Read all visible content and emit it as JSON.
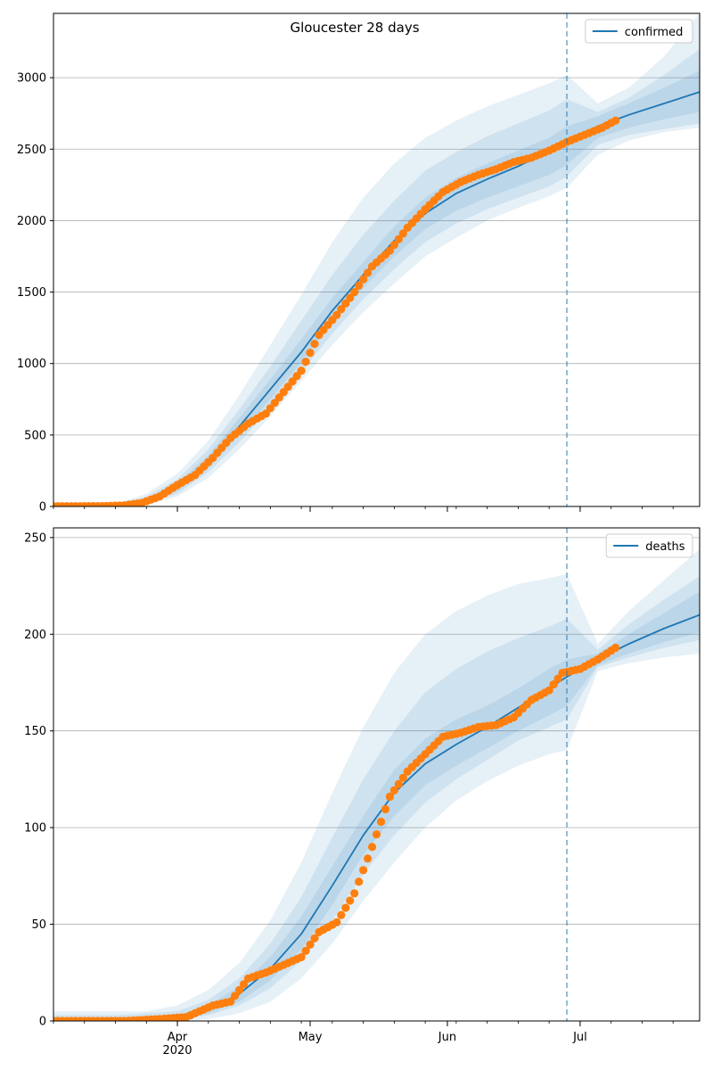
{
  "figure": {
    "title": "Gloucester 28 days"
  },
  "colors": {
    "model": "#1f77b4",
    "observed": "#ff7f0e",
    "band": "#1f77b4",
    "grid": "#b0b0b0"
  },
  "x_axis": {
    "start": "2020-03-04",
    "end": "2020-07-28",
    "month_ticks": [
      {
        "date": "2020-04-01",
        "label": "Apr",
        "sublabel": "2020"
      },
      {
        "date": "2020-05-01",
        "label": "May",
        "sublabel": ""
      },
      {
        "date": "2020-06-01",
        "label": "Jun",
        "sublabel": ""
      },
      {
        "date": "2020-07-01",
        "label": "Jul",
        "sublabel": ""
      }
    ],
    "forecast_date": "2020-06-28"
  },
  "chart_data": [
    {
      "type": "line",
      "legend": "confirmed",
      "legend_position": "top-right",
      "grid": "horizontal",
      "ylim": [
        0,
        3450
      ],
      "yticks": [
        0,
        500,
        1000,
        1500,
        2000,
        2500,
        3000
      ],
      "model": {
        "x": [
          "2020-03-04",
          "2020-03-18",
          "2020-03-25",
          "2020-04-01",
          "2020-04-08",
          "2020-04-15",
          "2020-04-22",
          "2020-04-29",
          "2020-05-06",
          "2020-05-13",
          "2020-05-20",
          "2020-05-27",
          "2020-06-03",
          "2020-06-10",
          "2020-06-17",
          "2020-06-24",
          "2020-06-28",
          "2020-07-05",
          "2020-07-12",
          "2020-07-20",
          "2020-07-28"
        ],
        "y": [
          0,
          5,
          40,
          130,
          310,
          560,
          820,
          1080,
          1370,
          1620,
          1860,
          2050,
          2190,
          2290,
          2380,
          2490,
          2560,
          2660,
          2740,
          2820,
          2900
        ],
        "bands": [
          {
            "lower": [
              0,
              0,
              10,
              70,
              200,
              400,
              630,
              880,
              1130,
              1360,
              1560,
              1750,
              1880,
              2000,
              2090,
              2170,
              2230,
              2460,
              2560,
              2620,
              2650
            ],
            "upper": [
              0,
              15,
              90,
              230,
              460,
              780,
              1130,
              1480,
              1850,
              2160,
              2400,
              2580,
              2700,
              2800,
              2880,
              2960,
              3020,
              2820,
              2930,
              3150,
              3450
            ]
          },
          {
            "lower": [
              0,
              2,
              20,
              90,
              240,
              450,
              690,
              940,
              1210,
              1450,
              1660,
              1850,
              1980,
              2080,
              2160,
              2240,
              2310,
              2530,
              2600,
              2640,
              2680
            ],
            "upper": [
              0,
              10,
              70,
              190,
              400,
              680,
              980,
              1300,
              1620,
              1900,
              2140,
              2350,
              2480,
              2590,
              2680,
              2770,
              2850,
              2760,
              2860,
              3020,
              3200
            ]
          },
          {
            "lower": [
              0,
              3,
              28,
              108,
              270,
              500,
              750,
              1010,
              1290,
              1530,
              1750,
              1940,
              2070,
              2160,
              2240,
              2320,
              2390,
              2580,
              2650,
              2710,
              2760
            ],
            "upper": [
              0,
              8,
              55,
              160,
              360,
              620,
              890,
              1170,
              1460,
              1710,
              1960,
              2160,
              2300,
              2400,
              2490,
              2580,
              2660,
              2730,
              2820,
              2930,
              3050
            ]
          }
        ]
      },
      "observed": {
        "x": [
          "2020-03-04",
          "2020-03-10",
          "2020-03-16",
          "2020-03-20",
          "2020-03-24",
          "2020-03-28",
          "2020-04-01",
          "2020-04-05",
          "2020-04-09",
          "2020-04-13",
          "2020-04-17",
          "2020-04-21",
          "2020-04-25",
          "2020-04-29",
          "2020-05-03",
          "2020-05-07",
          "2020-05-11",
          "2020-05-15",
          "2020-05-19",
          "2020-05-23",
          "2020-05-27",
          "2020-05-31",
          "2020-06-04",
          "2020-06-08",
          "2020-06-12",
          "2020-06-16",
          "2020-06-20",
          "2020-06-24",
          "2020-06-28",
          "2020-07-02",
          "2020-07-06",
          "2020-07-09"
        ],
        "y": [
          2,
          2,
          3,
          8,
          25,
          70,
          150,
          220,
          340,
          480,
          580,
          650,
          800,
          950,
          1200,
          1340,
          1500,
          1680,
          1790,
          1950,
          2080,
          2200,
          2270,
          2320,
          2360,
          2410,
          2440,
          2490,
          2550,
          2600,
          2650,
          2700
        ]
      }
    },
    {
      "type": "line",
      "legend": "deaths",
      "legend_position": "top-right",
      "grid": "horizontal",
      "ylim": [
        0,
        255
      ],
      "yticks": [
        0,
        50,
        100,
        150,
        200,
        250
      ],
      "model": {
        "x": [
          "2020-03-04",
          "2020-03-18",
          "2020-03-25",
          "2020-04-01",
          "2020-04-08",
          "2020-04-15",
          "2020-04-22",
          "2020-04-29",
          "2020-05-06",
          "2020-05-13",
          "2020-05-20",
          "2020-05-27",
          "2020-06-03",
          "2020-06-10",
          "2020-06-17",
          "2020-06-24",
          "2020-06-28",
          "2020-07-05",
          "2020-07-12",
          "2020-07-20",
          "2020-07-28"
        ],
        "y": [
          0,
          0,
          1,
          2,
          6,
          14,
          27,
          45,
          70,
          96,
          118,
          133,
          143,
          152,
          162,
          172,
          178,
          187,
          195,
          203,
          210
        ],
        "bands": [
          {
            "lower": [
              0,
              0,
              0,
              0,
              1,
              4,
              10,
              22,
              40,
              62,
              82,
              100,
              114,
              124,
              132,
              138,
              140,
              181,
              185,
              188,
              190
            ],
            "upper": [
              5,
              5,
              5,
              8,
              16,
              30,
              52,
              82,
              118,
              152,
              180,
              200,
              212,
              220,
              226,
              229,
              231,
              195,
              212,
              228,
              244
            ]
          },
          {
            "lower": [
              0,
              0,
              0,
              1,
              3,
              8,
              17,
              31,
              52,
              76,
              96,
              113,
              125,
              135,
              145,
              152,
              156,
              183,
              188,
              193,
              197
            ],
            "upper": [
              3,
              3,
              4,
              5,
              11,
              22,
              40,
              64,
              95,
              125,
              150,
              170,
              182,
              191,
              198,
              204,
              208,
              192,
              205,
              218,
              230
            ]
          },
          {
            "lower": [
              0,
              0,
              0,
              1,
              4,
              10,
              21,
              37,
              60,
              86,
              106,
              122,
              132,
              141,
              150,
              158,
              163,
              184,
              190,
              196,
              201
            ],
            "upper": [
              1,
              2,
              2,
              3,
              8,
              18,
              33,
              54,
              80,
              106,
              130,
              146,
              156,
              163,
              172,
              182,
              187,
              190,
              200,
              211,
              222
            ]
          }
        ]
      },
      "observed": {
        "x": [
          "2020-03-04",
          "2020-03-20",
          "2020-03-28",
          "2020-04-03",
          "2020-04-09",
          "2020-04-13",
          "2020-04-17",
          "2020-04-21",
          "2020-04-25",
          "2020-04-29",
          "2020-05-03",
          "2020-05-07",
          "2020-05-11",
          "2020-05-15",
          "2020-05-19",
          "2020-05-23",
          "2020-05-27",
          "2020-05-31",
          "2020-06-04",
          "2020-06-08",
          "2020-06-12",
          "2020-06-16",
          "2020-06-20",
          "2020-06-24",
          "2020-06-27",
          "2020-07-01",
          "2020-07-05",
          "2020-07-09"
        ],
        "y": [
          0,
          0,
          1,
          2,
          8,
          10,
          22,
          25,
          29,
          33,
          46,
          51,
          66,
          90,
          116,
          129,
          138,
          147,
          149,
          152,
          153,
          157,
          166,
          171,
          180,
          182,
          187,
          193
        ]
      }
    }
  ]
}
